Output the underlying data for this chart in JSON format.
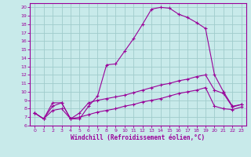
{
  "xlabel": "Windchill (Refroidissement éolien,°C)",
  "bg_color": "#c8eaea",
  "grid_color": "#a0cccc",
  "line_color": "#990099",
  "spine_color": "#990099",
  "xlim_min": -0.5,
  "xlim_max": 23.5,
  "ylim_min": 6,
  "ylim_max": 20.5,
  "xticks": [
    0,
    1,
    2,
    3,
    4,
    5,
    6,
    7,
    8,
    9,
    10,
    11,
    12,
    13,
    14,
    15,
    16,
    17,
    18,
    19,
    20,
    21,
    22,
    23
  ],
  "yticks": [
    6,
    7,
    8,
    9,
    10,
    11,
    12,
    13,
    14,
    15,
    16,
    17,
    18,
    19,
    20
  ],
  "line1_x": [
    0,
    1,
    2,
    3,
    4,
    5,
    6,
    7,
    8,
    9,
    10,
    11,
    12,
    13,
    14,
    15,
    16,
    17,
    18,
    19,
    20,
    21,
    22,
    23
  ],
  "line1_y": [
    7.5,
    6.8,
    8.7,
    8.7,
    6.8,
    6.8,
    8.3,
    9.5,
    13.2,
    13.3,
    14.8,
    16.3,
    18.0,
    19.8,
    20.0,
    19.9,
    19.2,
    18.8,
    18.2,
    17.5,
    12.0,
    10.0,
    8.3,
    8.5
  ],
  "line2_x": [
    0,
    1,
    2,
    3,
    4,
    5,
    6,
    7,
    8,
    9,
    10,
    11,
    12,
    13,
    14,
    15,
    16,
    17,
    18,
    19,
    20,
    21,
    22,
    23
  ],
  "line2_y": [
    7.5,
    6.8,
    8.3,
    8.7,
    6.8,
    7.5,
    8.7,
    9.0,
    9.2,
    9.4,
    9.6,
    9.9,
    10.2,
    10.5,
    10.8,
    11.0,
    11.3,
    11.5,
    11.8,
    12.0,
    10.2,
    9.8,
    8.2,
    8.5
  ],
  "line3_x": [
    0,
    1,
    2,
    3,
    4,
    5,
    6,
    7,
    8,
    9,
    10,
    11,
    12,
    13,
    14,
    15,
    16,
    17,
    18,
    19,
    20,
    21,
    22,
    23
  ],
  "line3_y": [
    7.5,
    6.8,
    7.8,
    8.0,
    6.8,
    7.0,
    7.3,
    7.6,
    7.8,
    8.0,
    8.3,
    8.5,
    8.8,
    9.0,
    9.2,
    9.5,
    9.8,
    10.0,
    10.2,
    10.5,
    8.3,
    8.0,
    7.9,
    8.2
  ],
  "tick_labelsize": 4.5,
  "xlabel_fontsize": 5.5
}
